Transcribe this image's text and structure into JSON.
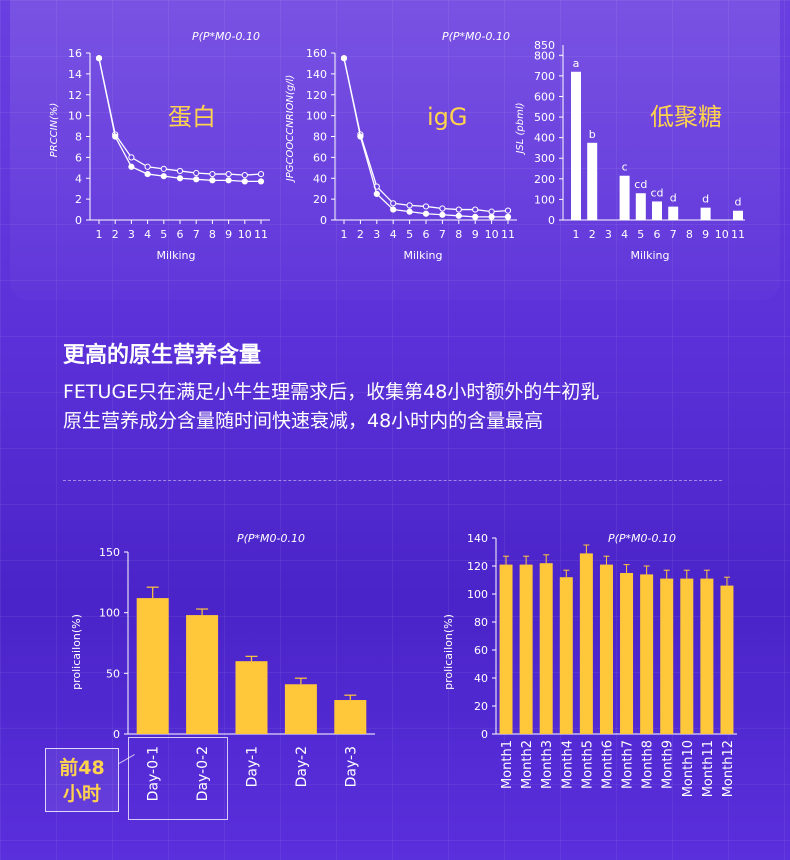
{
  "colors": {
    "bar_gold": "#ffc83a",
    "chart_label_gold": "#ffd34d",
    "axis": "#ffffff"
  },
  "charts_top": {
    "protein": {
      "note": "P(P*M0-0.10",
      "label": "蛋白",
      "ylabel": "PRCCIN(%)",
      "xlabel": "Milking"
    },
    "igg": {
      "note": "P(P*M0-0.10",
      "label": "igG",
      "ylabel": "JPGCOOCCNRION(g/l)",
      "xlabel": "Milking"
    },
    "oligo": {
      "label": "低聚糖",
      "ylabel": "JSL  (pbml)",
      "xlabel": "Milking"
    }
  },
  "section": {
    "title": "更高的原生营养含量",
    "line1": "FETUGE只在满足小牛生理需求后，收集第48小时额外的牛初乳",
    "line2": "原生营养成分含量随时间快速衰减，48小时内的含量最高"
  },
  "charts_bottom": {
    "days": {
      "note": "P(P*M0-0.10",
      "ylabel": "prolicailon(%)"
    },
    "months": {
      "note": "P(P*M0-0.10",
      "ylabel": "prolicailon(%)"
    }
  },
  "badge": {
    "line1": "前48",
    "line2": "小时"
  },
  "chart_data": [
    {
      "type": "line",
      "x": [
        1,
        2,
        3,
        4,
        5,
        6,
        7,
        8,
        9,
        10,
        11
      ],
      "xticks": [
        "1",
        "2",
        "3",
        "4",
        "5",
        "6",
        "7",
        "8",
        "9",
        "10",
        "11"
      ],
      "ylim": [
        0,
        16
      ],
      "yticks": [
        0,
        2,
        4,
        6,
        8,
        10,
        12,
        14,
        16
      ],
      "series": [
        {
          "values": [
            15.5,
            8.2,
            6.0,
            5.1,
            4.9,
            4.7,
            4.5,
            4.4,
            4.4,
            4.3,
            4.4
          ]
        },
        {
          "values": [
            15.5,
            8.0,
            5.1,
            4.4,
            4.2,
            4.0,
            3.9,
            3.8,
            3.8,
            3.7,
            3.7
          ]
        }
      ]
    },
    {
      "type": "line",
      "x": [
        1,
        2,
        3,
        4,
        5,
        6,
        7,
        8,
        9,
        10,
        11
      ],
      "xticks": [
        "1",
        "2",
        "3",
        "4",
        "5",
        "6",
        "7",
        "8",
        "9",
        "10",
        "11"
      ],
      "ylim": [
        0,
        160
      ],
      "yticks": [
        0,
        20,
        40,
        60,
        80,
        100,
        120,
        140,
        160
      ],
      "series": [
        {
          "values": [
            155,
            82,
            32,
            16,
            14,
            13,
            11,
            10,
            10,
            8,
            9
          ]
        },
        {
          "values": [
            155,
            80,
            25,
            10,
            8,
            6,
            5,
            4,
            3,
            3,
            3
          ]
        }
      ]
    },
    {
      "type": "bar",
      "categories": [
        "1",
        "2",
        "3",
        "4",
        "5",
        "6",
        "7",
        "8",
        "9",
        "10",
        "11"
      ],
      "values": [
        720,
        375,
        null,
        215,
        130,
        90,
        65,
        null,
        60,
        null,
        45
      ],
      "bar_labels": [
        "a",
        "b",
        "",
        "c",
        "cd",
        "cd",
        "d",
        "",
        "d",
        "",
        "d"
      ],
      "ylim": [
        0,
        850
      ],
      "yticks": [
        0,
        100,
        200,
        300,
        400,
        500,
        600,
        700,
        800
      ],
      "ytick_top_label": "850"
    },
    {
      "type": "bar",
      "categories": [
        "Day-0-1",
        "Day-0-2",
        "Day-1",
        "Day-2",
        "Day-3"
      ],
      "values": [
        112,
        98,
        60,
        41,
        28
      ],
      "errors": [
        9,
        5,
        4,
        5,
        4
      ],
      "ylim": [
        0,
        150
      ],
      "yticks": [
        0,
        50,
        100,
        150
      ]
    },
    {
      "type": "bar",
      "categories": [
        "Month1",
        "Month2",
        "Month3",
        "Month4",
        "Month5",
        "Month6",
        "Month7",
        "Month8",
        "Month9",
        "Month10",
        "Month11",
        "Month12"
      ],
      "values": [
        121,
        121,
        122,
        112,
        129,
        121,
        115,
        114,
        111,
        111,
        111,
        106
      ],
      "errors": [
        6,
        6,
        6,
        5,
        6,
        6,
        6,
        6,
        6,
        6,
        6,
        6
      ],
      "ylim": [
        0,
        140
      ],
      "yticks": [
        0,
        20,
        40,
        60,
        80,
        100,
        120,
        140
      ]
    }
  ]
}
